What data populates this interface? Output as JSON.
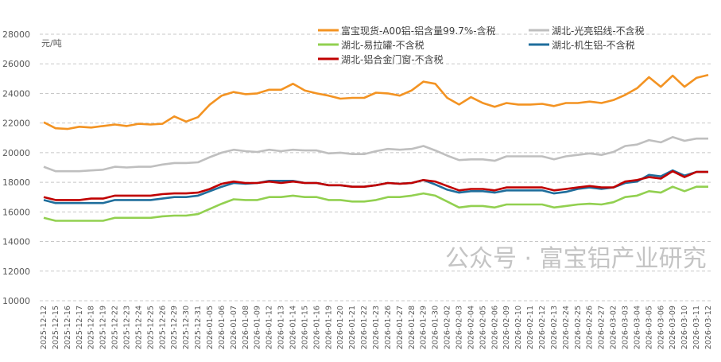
{
  "chart_data": {
    "type": "line",
    "unit_label": "元/吨",
    "ylim": [
      10000,
      28000
    ],
    "yticks": [
      10000,
      12000,
      14000,
      16000,
      18000,
      20000,
      22000,
      24000,
      26000,
      28000
    ],
    "grid": true,
    "legend_placement": "top-right",
    "x": [
      "2025-12-12",
      "2025-12-15",
      "2025-12-16",
      "2025-12-17",
      "2025-12-18",
      "2025-12-19",
      "2025-12-22",
      "2025-12-23",
      "2025-12-24",
      "2025-12-25",
      "2025-12-26",
      "2025-12-29",
      "2025-12-30",
      "2025-12-31",
      "2026-01-05",
      "2026-01-06",
      "2026-01-07",
      "2026-01-08",
      "2026-01-09",
      "2026-01-12",
      "2026-01-13",
      "2026-01-14",
      "2026-01-15",
      "2026-01-16",
      "2026-01-19",
      "2026-01-20",
      "2026-01-21",
      "2026-01-22",
      "2026-01-23",
      "2026-01-26",
      "2026-01-27",
      "2026-01-28",
      "2026-01-29",
      "2026-01-30",
      "2026-02-02",
      "2026-02-03",
      "2026-02-04",
      "2026-02-05",
      "2026-02-06",
      "2026-02-09",
      "2026-02-10",
      "2026-02-11",
      "2026-02-12",
      "2026-02-13",
      "2026-02-24",
      "2026-02-25",
      "2026-02-26",
      "2026-02-27",
      "2026-03-02",
      "2026-03-03",
      "2026-03-04",
      "2026-03-05",
      "2026-03-06",
      "2026-03-09",
      "2026-03-10",
      "2026-03-11",
      "2026-03-12"
    ],
    "series": [
      {
        "name": "富宝现货-A00铝-铝含量99.7%-含税",
        "color": "#F39322",
        "values": [
          22050,
          21650,
          21600,
          21750,
          21700,
          21800,
          21900,
          21800,
          21950,
          21900,
          21950,
          22450,
          22100,
          22400,
          23250,
          23850,
          24100,
          23950,
          24000,
          24250,
          24250,
          24650,
          24200,
          24000,
          23850,
          23650,
          23700,
          23700,
          24050,
          24000,
          23850,
          24200,
          24800,
          24650,
          23700,
          23250,
          23750,
          23350,
          23100,
          23350,
          23250,
          23250,
          23300,
          23150,
          23350,
          23350,
          23450,
          23350,
          23550,
          23900,
          24350,
          25100,
          24450,
          25200,
          24450,
          25050,
          25250
        ]
      },
      {
        "name": "湖北-光亮铝线-不含税",
        "color": "#BFBFBF",
        "values": [
          19050,
          18750,
          18750,
          18750,
          18800,
          18850,
          19050,
          19000,
          19050,
          19050,
          19200,
          19300,
          19300,
          19350,
          19700,
          20000,
          20200,
          20100,
          20050,
          20200,
          20100,
          20200,
          20150,
          20150,
          19950,
          20000,
          19900,
          19900,
          20100,
          20250,
          20200,
          20250,
          20450,
          20150,
          19800,
          19500,
          19550,
          19550,
          19450,
          19750,
          19750,
          19750,
          19750,
          19550,
          19750,
          19850,
          19950,
          19850,
          20050,
          20450,
          20550,
          20850,
          20700,
          21050,
          20800,
          20950,
          20950
        ]
      },
      {
        "name": "湖北-易拉罐-不含税",
        "color": "#92D050",
        "values": [
          15600,
          15400,
          15400,
          15400,
          15400,
          15400,
          15600,
          15600,
          15600,
          15600,
          15700,
          15750,
          15750,
          15850,
          16200,
          16550,
          16850,
          16800,
          16800,
          17000,
          17000,
          17100,
          17000,
          17000,
          16800,
          16800,
          16700,
          16700,
          16800,
          17000,
          17000,
          17100,
          17250,
          17100,
          16700,
          16300,
          16400,
          16400,
          16300,
          16500,
          16500,
          16500,
          16500,
          16300,
          16400,
          16500,
          16550,
          16500,
          16650,
          17000,
          17100,
          17400,
          17300,
          17700,
          17400,
          17700,
          17700
        ]
      },
      {
        "name": "湖北-机生铝-不含税",
        "color": "#1F6E9C",
        "values": [
          16800,
          16600,
          16600,
          16600,
          16600,
          16600,
          16800,
          16800,
          16800,
          16800,
          16900,
          17000,
          17000,
          17100,
          17400,
          17700,
          17950,
          17900,
          17950,
          18100,
          18100,
          18100,
          17950,
          17950,
          17800,
          17800,
          17700,
          17700,
          17800,
          17950,
          17900,
          17950,
          18150,
          17850,
          17500,
          17300,
          17400,
          17400,
          17300,
          17450,
          17450,
          17450,
          17450,
          17250,
          17350,
          17550,
          17650,
          17550,
          17650,
          17950,
          18050,
          18500,
          18400,
          18800,
          18450,
          18700,
          18700
        ]
      },
      {
        "name": "湖北-铝合金门窗-不含税",
        "color": "#C00000",
        "values": [
          17000,
          16800,
          16800,
          16800,
          16900,
          16900,
          17100,
          17100,
          17100,
          17100,
          17200,
          17250,
          17250,
          17300,
          17550,
          17900,
          18050,
          17950,
          17950,
          18050,
          17950,
          18050,
          17950,
          17950,
          17800,
          17800,
          17700,
          17700,
          17800,
          17950,
          17900,
          17950,
          18150,
          18050,
          17750,
          17450,
          17550,
          17550,
          17450,
          17650,
          17650,
          17650,
          17650,
          17450,
          17550,
          17650,
          17750,
          17650,
          17650,
          18050,
          18150,
          18350,
          18250,
          18750,
          18350,
          18700,
          18700
        ]
      }
    ]
  },
  "watermark": "公众号 · 富宝铝产业研究"
}
